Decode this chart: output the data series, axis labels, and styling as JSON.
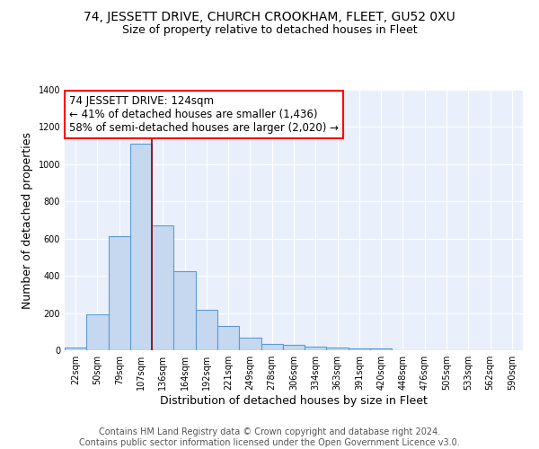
{
  "title": "74, JESSETT DRIVE, CHURCH CROOKHAM, FLEET, GU52 0XU",
  "subtitle": "Size of property relative to detached houses in Fleet",
  "xlabel": "Distribution of detached houses by size in Fleet",
  "ylabel": "Number of detached properties",
  "footer_line1": "Contains HM Land Registry data © Crown copyright and database right 2024.",
  "footer_line2": "Contains public sector information licensed under the Open Government Licence v3.0.",
  "categories": [
    "22sqm",
    "50sqm",
    "79sqm",
    "107sqm",
    "136sqm",
    "164sqm",
    "192sqm",
    "221sqm",
    "249sqm",
    "278sqm",
    "306sqm",
    "334sqm",
    "363sqm",
    "391sqm",
    "420sqm",
    "448sqm",
    "476sqm",
    "505sqm",
    "533sqm",
    "562sqm",
    "590sqm"
  ],
  "values": [
    15,
    195,
    615,
    1110,
    670,
    425,
    215,
    128,
    70,
    33,
    30,
    18,
    13,
    10,
    12,
    0,
    0,
    0,
    0,
    0,
    0
  ],
  "bar_color": "#c5d8f0",
  "bar_edge_color": "#5b9bd5",
  "background_color": "#eaf0fb",
  "annotation_line1": "74 JESSETT DRIVE: 124sqm",
  "annotation_line2": "← 41% of detached houses are smaller (1,436)",
  "annotation_line3": "58% of semi-detached houses are larger (2,020) →",
  "annotation_box_color": "white",
  "annotation_box_edge_color": "red",
  "vline_x_index": 3.5,
  "vline_color": "#8b0000",
  "ylim": [
    0,
    1400
  ],
  "title_fontsize": 10,
  "subtitle_fontsize": 9,
  "axis_label_fontsize": 9,
  "tick_fontsize": 7,
  "annotation_fontsize": 8.5,
  "footer_fontsize": 7
}
